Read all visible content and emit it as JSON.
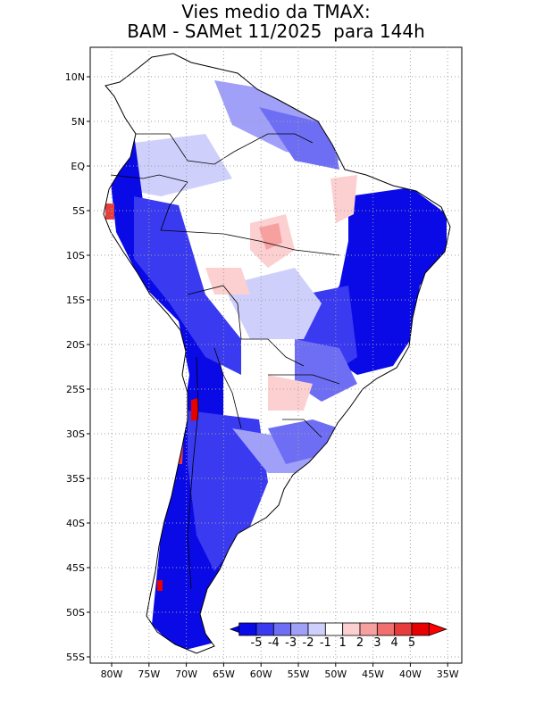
{
  "title": {
    "line1": "Vies medio da TMAX:",
    "line2": "BAM - SAMet 11/2025  para 144h"
  },
  "axes": {
    "lat_ticks": [
      "10N",
      "5N",
      "EQ",
      "5S",
      "10S",
      "15S",
      "20S",
      "25S",
      "30S",
      "35S",
      "40S",
      "45S",
      "50S",
      "55S"
    ],
    "lon_ticks": [
      "80W",
      "75W",
      "70W",
      "65W",
      "60W",
      "55W",
      "50W",
      "45W",
      "40W",
      "35W"
    ],
    "lat_range": [
      12.5,
      -56
    ],
    "lon_range": [
      -83,
      -34
    ]
  },
  "colorbar": {
    "labels": [
      "-5",
      "-4",
      "-3",
      "-2",
      "-1",
      "1",
      "2",
      "3",
      "4",
      "5"
    ],
    "colors": [
      "#0a0ae6",
      "#3a3af0",
      "#6e6ef5",
      "#a0a0f8",
      "#cfcffb",
      "#ffffff",
      "#fcd0d0",
      "#f7a0a0",
      "#f07070",
      "#e63c3c",
      "#e60000"
    ],
    "low_color": "#0000ff",
    "high_color": "#ff0000"
  },
  "colors": {
    "land_neutral": "#ffffff",
    "ocean": "#ffffff",
    "border": "#000000",
    "grid": "#a0a0a0"
  }
}
